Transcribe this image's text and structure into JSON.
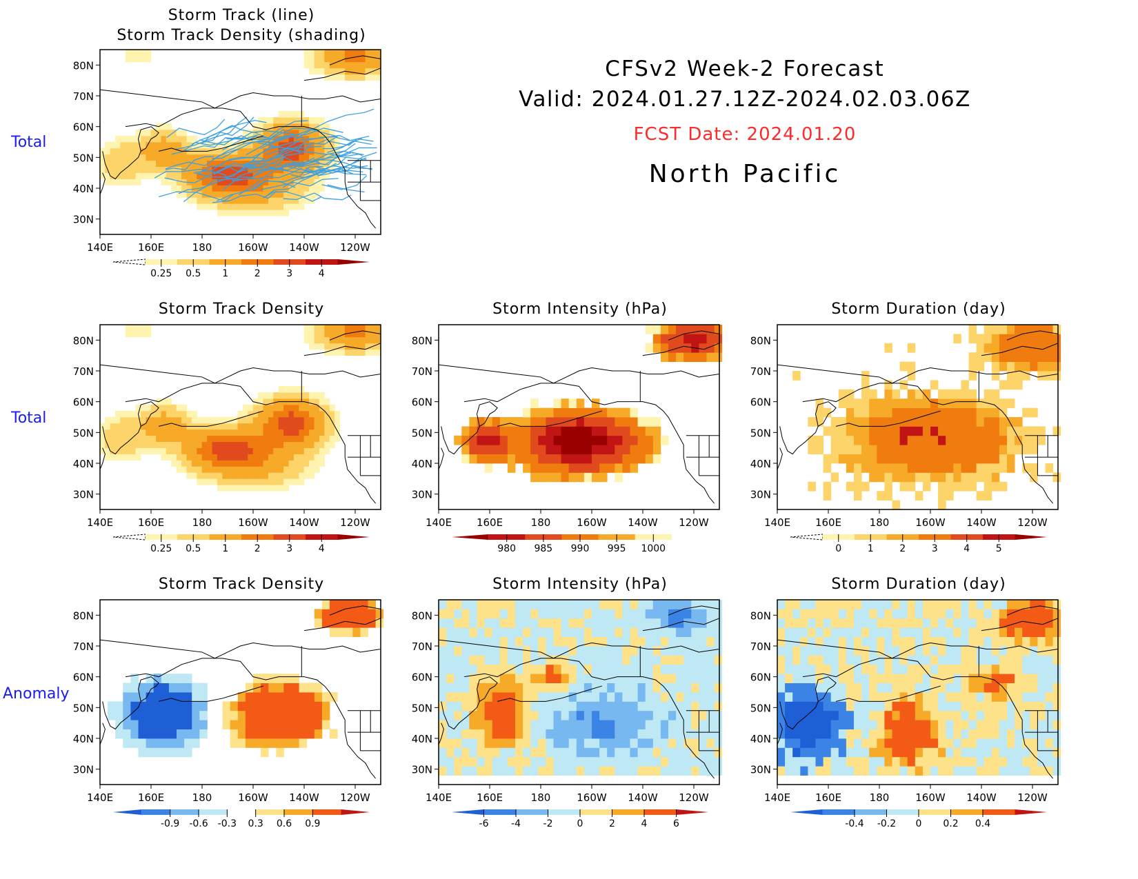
{
  "header": {
    "title": "CFSv2 Week-2 Forecast",
    "valid": "Valid: 2024.01.27.12Z-2024.02.03.06Z",
    "fcst_date": "FCST Date: 2024.01.20",
    "region": "North Pacific"
  },
  "row_labels": [
    "Total",
    "Total",
    "Anomaly"
  ],
  "axes": {
    "lat_ticks": [
      "80N",
      "70N",
      "60N",
      "50N",
      "40N",
      "30N"
    ],
    "lon_ticks": [
      "140E",
      "160E",
      "180",
      "160W",
      "140W",
      "120W"
    ]
  },
  "panels": [
    {
      "id": "p1",
      "title_line1": "Storm Track (line)",
      "title_line2": "Storm Track Density (shading)",
      "colorbar": "density"
    },
    {
      "id": "p2",
      "title_line1": "Storm Track Density",
      "colorbar": "density"
    },
    {
      "id": "p3",
      "title_line1": "Storm Intensity (hPa)",
      "colorbar": "intensity"
    },
    {
      "id": "p4",
      "title_line1": "Storm Duration (day)",
      "colorbar": "duration"
    },
    {
      "id": "p5",
      "title_line1": "Storm Track Density",
      "colorbar": "density_anom"
    },
    {
      "id": "p6",
      "title_line1": "Storm Intensity (hPa)",
      "colorbar": "intensity_anom"
    },
    {
      "id": "p7",
      "title_line1": "Storm Duration (day)",
      "colorbar": "duration_anom"
    }
  ],
  "colorbars": {
    "density": {
      "labels": [
        "0.25",
        "0.5",
        "1",
        "2",
        "3",
        "4"
      ],
      "colors": [
        "#fff3b0",
        "#fdd46a",
        "#f7a928",
        "#f07c10",
        "#e04a1c",
        "#c11414",
        "#990000"
      ]
    },
    "intensity": {
      "labels": [
        "980",
        "985",
        "990",
        "995",
        "1000"
      ],
      "colors": [
        "#990000",
        "#c11414",
        "#e04a1c",
        "#f07c10",
        "#f7a928",
        "#fff3b0"
      ]
    },
    "duration": {
      "labels": [
        "0",
        "1",
        "2",
        "3",
        "4",
        "5"
      ],
      "colors": [
        "#fff3b0",
        "#fdd46a",
        "#f7a928",
        "#f07c10",
        "#e04a1c",
        "#c11414",
        "#990000"
      ]
    },
    "density_anom": {
      "labels": [
        "-0.9",
        "-0.6",
        "-0.3",
        "0.3",
        "0.6",
        "0.9"
      ],
      "colors": [
        "#1f5fd6",
        "#3b84e6",
        "#78b8f0",
        "#bfe8f5",
        "#ffffff",
        "#fde28a",
        "#f7a928",
        "#f25a16",
        "#c11414"
      ]
    },
    "intensity_anom": {
      "labels": [
        "-6",
        "-4",
        "-2",
        "0",
        "2",
        "4",
        "6"
      ],
      "colors": [
        "#1f5fd6",
        "#3b84e6",
        "#78b8f0",
        "#bfe8f5",
        "#fde28a",
        "#f7a928",
        "#f25a16",
        "#c11414"
      ]
    },
    "duration_anom": {
      "labels": [
        "-0.4",
        "-0.2",
        "0",
        "0.2",
        "0.4"
      ],
      "colors": [
        "#1f5fd6",
        "#3b84e6",
        "#78b8f0",
        "#bfe8f5",
        "#fde28a",
        "#f7a928",
        "#f25a16",
        "#c11414"
      ]
    }
  },
  "fields": {
    "density": {
      "value_range": [
        0,
        5
      ],
      "centers": [
        {
          "lon": 190,
          "lat": 45,
          "amp": 3.2
        },
        {
          "lon": 215,
          "lat": 53,
          "amp": 3.6
        },
        {
          "lon": 240,
          "lat": 83,
          "amp": 2.2
        },
        {
          "lon": 165,
          "lat": 52,
          "amp": 1.6
        }
      ]
    },
    "intensity_total": {
      "min_hPa": 980,
      "max_hPa": 1000
    },
    "duration_total": {
      "min_day": 0,
      "max_day": 5
    },
    "density_anom": {
      "negative_region": "160E-180, 35N-60N",
      "positive_region": "175W-125W, 40N-60N"
    }
  }
}
